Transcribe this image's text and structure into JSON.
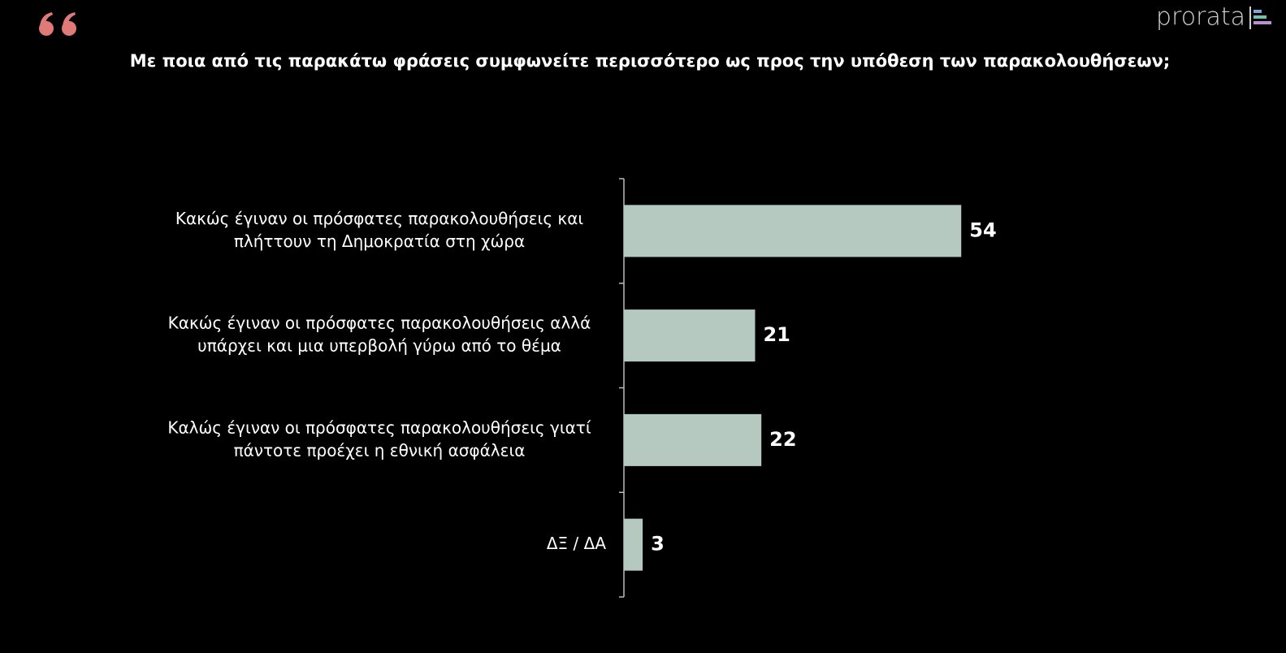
{
  "logo": "prorata",
  "chart_data": {
    "type": "bar",
    "orientation": "horizontal",
    "title": "Με ποια από τις παρακάτω φράσεις συμφωνείτε περισσότερο ως προς την υπόθεση των παρακολουθήσεων;",
    "categories": [
      [
        "Κακώς έγιναν οι πρόσφατες παρακολουθήσεις και",
        "πλήττουν τη Δημοκρατία στη χώρα"
      ],
      [
        "Κακώς έγιναν οι πρόσφατες παρακολουθήσεις αλλά",
        "υπάρχει και μια υπερβολή γύρω από το θέμα"
      ],
      [
        "Καλώς έγιναν οι πρόσφατες παρακολουθήσεις γιατί",
        "πάντοτε προέχει η εθνική ασφάλεια"
      ],
      [
        "ΔΞ / ΔΑ"
      ]
    ],
    "values": [
      54,
      21,
      22,
      3
    ],
    "color": "#b5c9c0"
  }
}
